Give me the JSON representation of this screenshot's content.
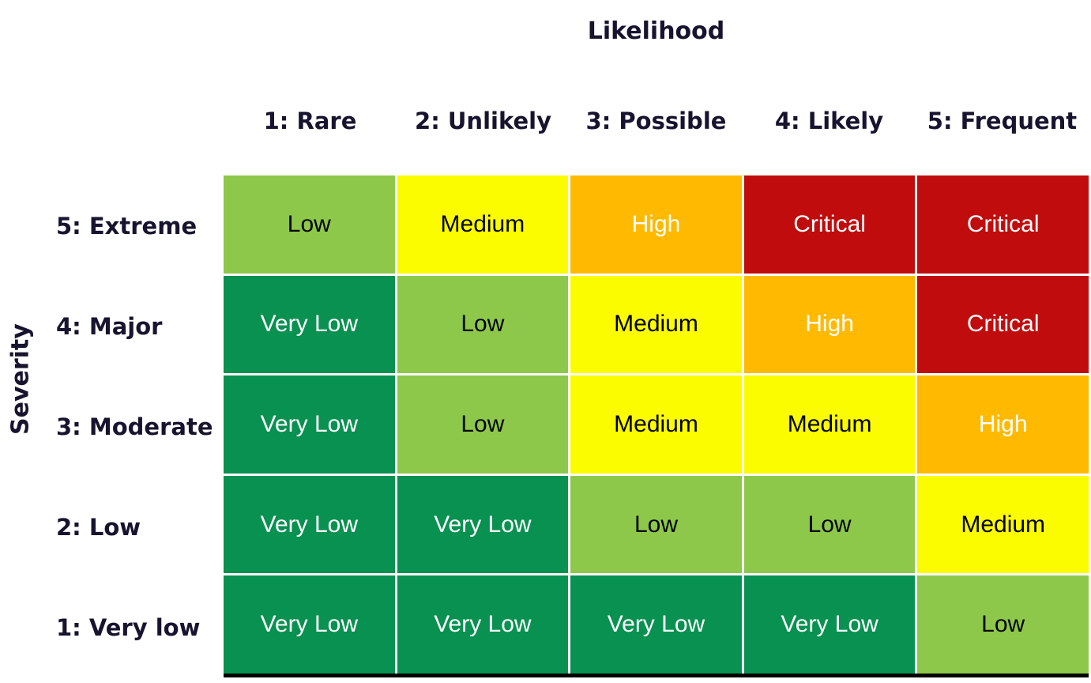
{
  "colors": {
    "background": "#FFFFFF",
    "heading_text": "#16142E",
    "grid_line": "#FFFFFF",
    "table_bottom_border": "#000000",
    "levels": {
      "very_low": {
        "bg": "#089150",
        "text": "#FFFFFF"
      },
      "low": {
        "bg": "#8DC84B",
        "text": "#000000"
      },
      "medium": {
        "bg": "#FCFC00",
        "text": "#000000"
      },
      "high": {
        "bg": "#FFBA00",
        "text": "#FFFFFF"
      },
      "critical": {
        "bg": "#C00C0C",
        "text": "#FFFFFF"
      }
    }
  },
  "chart_data": {
    "type": "heatmap",
    "xlabel": "Likelihood",
    "ylabel": "Severity",
    "x_categories": [
      "1: Rare",
      "2: Unlikely",
      "3: Possible",
      "4: Likely",
      "5: Frequent"
    ],
    "y_categories": [
      "5: Extreme",
      "4: Major",
      "3: Moderate",
      "2: Low",
      "1: Very low"
    ],
    "legend": "none",
    "grid": "white gridlines between cells, black border under table",
    "rows": [
      {
        "severity": "5: Extreme",
        "cells": [
          {
            "label": "Low",
            "level": "low"
          },
          {
            "label": "Medium",
            "level": "medium"
          },
          {
            "label": "High",
            "level": "high"
          },
          {
            "label": "Critical",
            "level": "critical"
          },
          {
            "label": "Critical",
            "level": "critical"
          }
        ]
      },
      {
        "severity": "4: Major",
        "cells": [
          {
            "label": "Very Low",
            "level": "very_low"
          },
          {
            "label": "Low",
            "level": "low"
          },
          {
            "label": "Medium",
            "level": "medium"
          },
          {
            "label": "High",
            "level": "high"
          },
          {
            "label": "Critical",
            "level": "critical"
          }
        ]
      },
      {
        "severity": "3: Moderate",
        "cells": [
          {
            "label": "Very Low",
            "level": "very_low"
          },
          {
            "label": "Low",
            "level": "low"
          },
          {
            "label": "Medium",
            "level": "medium"
          },
          {
            "label": "Medium",
            "level": "medium"
          },
          {
            "label": "High",
            "level": "high"
          }
        ]
      },
      {
        "severity": "2: Low",
        "cells": [
          {
            "label": "Very Low",
            "level": "very_low"
          },
          {
            "label": "Very Low",
            "level": "very_low"
          },
          {
            "label": "Low",
            "level": "low"
          },
          {
            "label": "Low",
            "level": "low"
          },
          {
            "label": "Medium",
            "level": "medium"
          }
        ]
      },
      {
        "severity": "1: Very low",
        "cells": [
          {
            "label": "Very Low",
            "level": "very_low"
          },
          {
            "label": "Very Low",
            "level": "very_low"
          },
          {
            "label": "Very Low",
            "level": "very_low"
          },
          {
            "label": "Very Low",
            "level": "very_low"
          },
          {
            "label": "Low",
            "level": "low"
          }
        ]
      }
    ]
  }
}
